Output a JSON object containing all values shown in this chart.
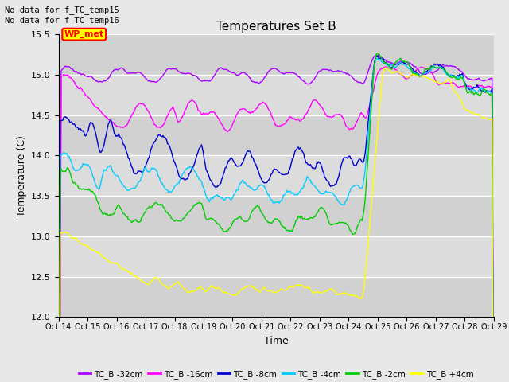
{
  "title": "Temperatures Set B",
  "xlabel": "Time",
  "ylabel": "Temperature (C)",
  "ylim": [
    12.0,
    15.5
  ],
  "yticks": [
    12.0,
    12.5,
    13.0,
    13.5,
    14.0,
    14.5,
    15.0,
    15.5
  ],
  "bg_color": "#e8e8e8",
  "plot_bg": "#d8d8d8",
  "annotation_top": "No data for f_TC_temp15\nNo data for f_TC_temp16",
  "wp_met_label": "WP_met",
  "series": [
    {
      "label": "TC_B -32cm",
      "color": "#aa00ff"
    },
    {
      "label": "TC_B -16cm",
      "color": "#ff00ff"
    },
    {
      "label": "TC_B -8cm",
      "color": "#0000cc"
    },
    {
      "label": "TC_B -4cm",
      "color": "#00ccff"
    },
    {
      "label": "TC_B -2cm",
      "color": "#00cc00"
    },
    {
      "label": "TC_B +4cm",
      "color": "#ffff00"
    }
  ],
  "xtick_labels": [
    "Oct 14",
    "Oct 15",
    "Oct 16",
    "Oct 17",
    "Oct 18",
    "Oct 19",
    "Oct 20",
    "Oct 21",
    "Oct 22",
    "Oct 23",
    "Oct 24",
    "Oct 25",
    "Oct 26",
    "Oct 27",
    "Oct 28",
    "Oct 29"
  ],
  "n_points": 500
}
